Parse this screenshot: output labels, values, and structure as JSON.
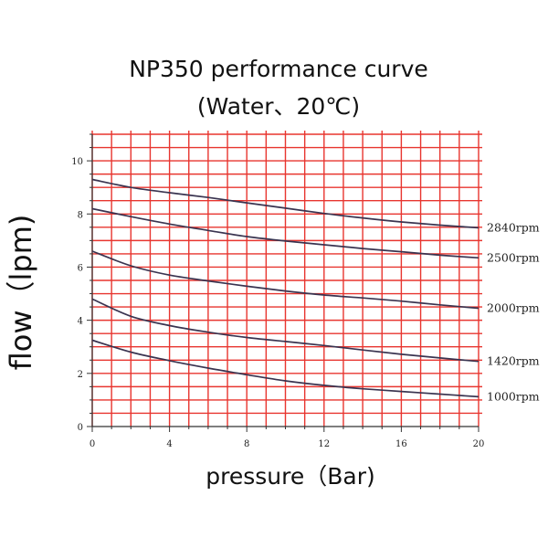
{
  "chart_data": {
    "type": "line",
    "title": "NP350 performance curve",
    "subtitle": "(Water、20℃)",
    "xlabel": "pressure（Bar)",
    "ylabel": "flow（lpm)",
    "xlim": [
      0,
      20
    ],
    "ylim": [
      0,
      11
    ],
    "xticks": [
      0,
      4,
      8,
      12,
      16,
      20
    ],
    "yticks": [
      0,
      2,
      4,
      6,
      8,
      10
    ],
    "grid": true,
    "colors": {
      "grid": "#e8352f",
      "curve": "#3a3450",
      "axis": "#333333"
    },
    "series": [
      {
        "name": "2840rpm",
        "x": [
          0,
          2,
          4,
          6,
          8,
          10,
          12,
          14,
          16,
          18,
          20
        ],
        "y": [
          9.3,
          9.0,
          8.8,
          8.62,
          8.42,
          8.22,
          8.02,
          7.85,
          7.7,
          7.58,
          7.48
        ]
      },
      {
        "name": "2500rpm",
        "x": [
          0,
          2,
          4,
          6,
          8,
          10,
          12,
          14,
          16,
          18,
          20
        ],
        "y": [
          8.2,
          7.9,
          7.62,
          7.38,
          7.15,
          6.98,
          6.84,
          6.7,
          6.58,
          6.45,
          6.35
        ]
      },
      {
        "name": "2000rpm",
        "x": [
          0,
          2,
          4,
          6,
          8,
          10,
          12,
          14,
          16,
          18,
          20
        ],
        "y": [
          6.6,
          6.05,
          5.7,
          5.48,
          5.28,
          5.1,
          4.95,
          4.84,
          4.72,
          4.58,
          4.45
        ]
      },
      {
        "name": "1420rpm",
        "x": [
          0,
          2,
          4,
          6,
          8,
          10,
          12,
          14,
          16,
          18,
          20
        ],
        "y": [
          4.8,
          4.15,
          3.8,
          3.55,
          3.35,
          3.2,
          3.05,
          2.88,
          2.72,
          2.58,
          2.45
        ]
      },
      {
        "name": "1000rpm",
        "x": [
          0,
          2,
          4,
          6,
          8,
          10,
          12,
          14,
          16,
          18,
          20
        ],
        "y": [
          3.25,
          2.8,
          2.48,
          2.2,
          1.95,
          1.72,
          1.55,
          1.42,
          1.32,
          1.22,
          1.12
        ]
      }
    ]
  }
}
